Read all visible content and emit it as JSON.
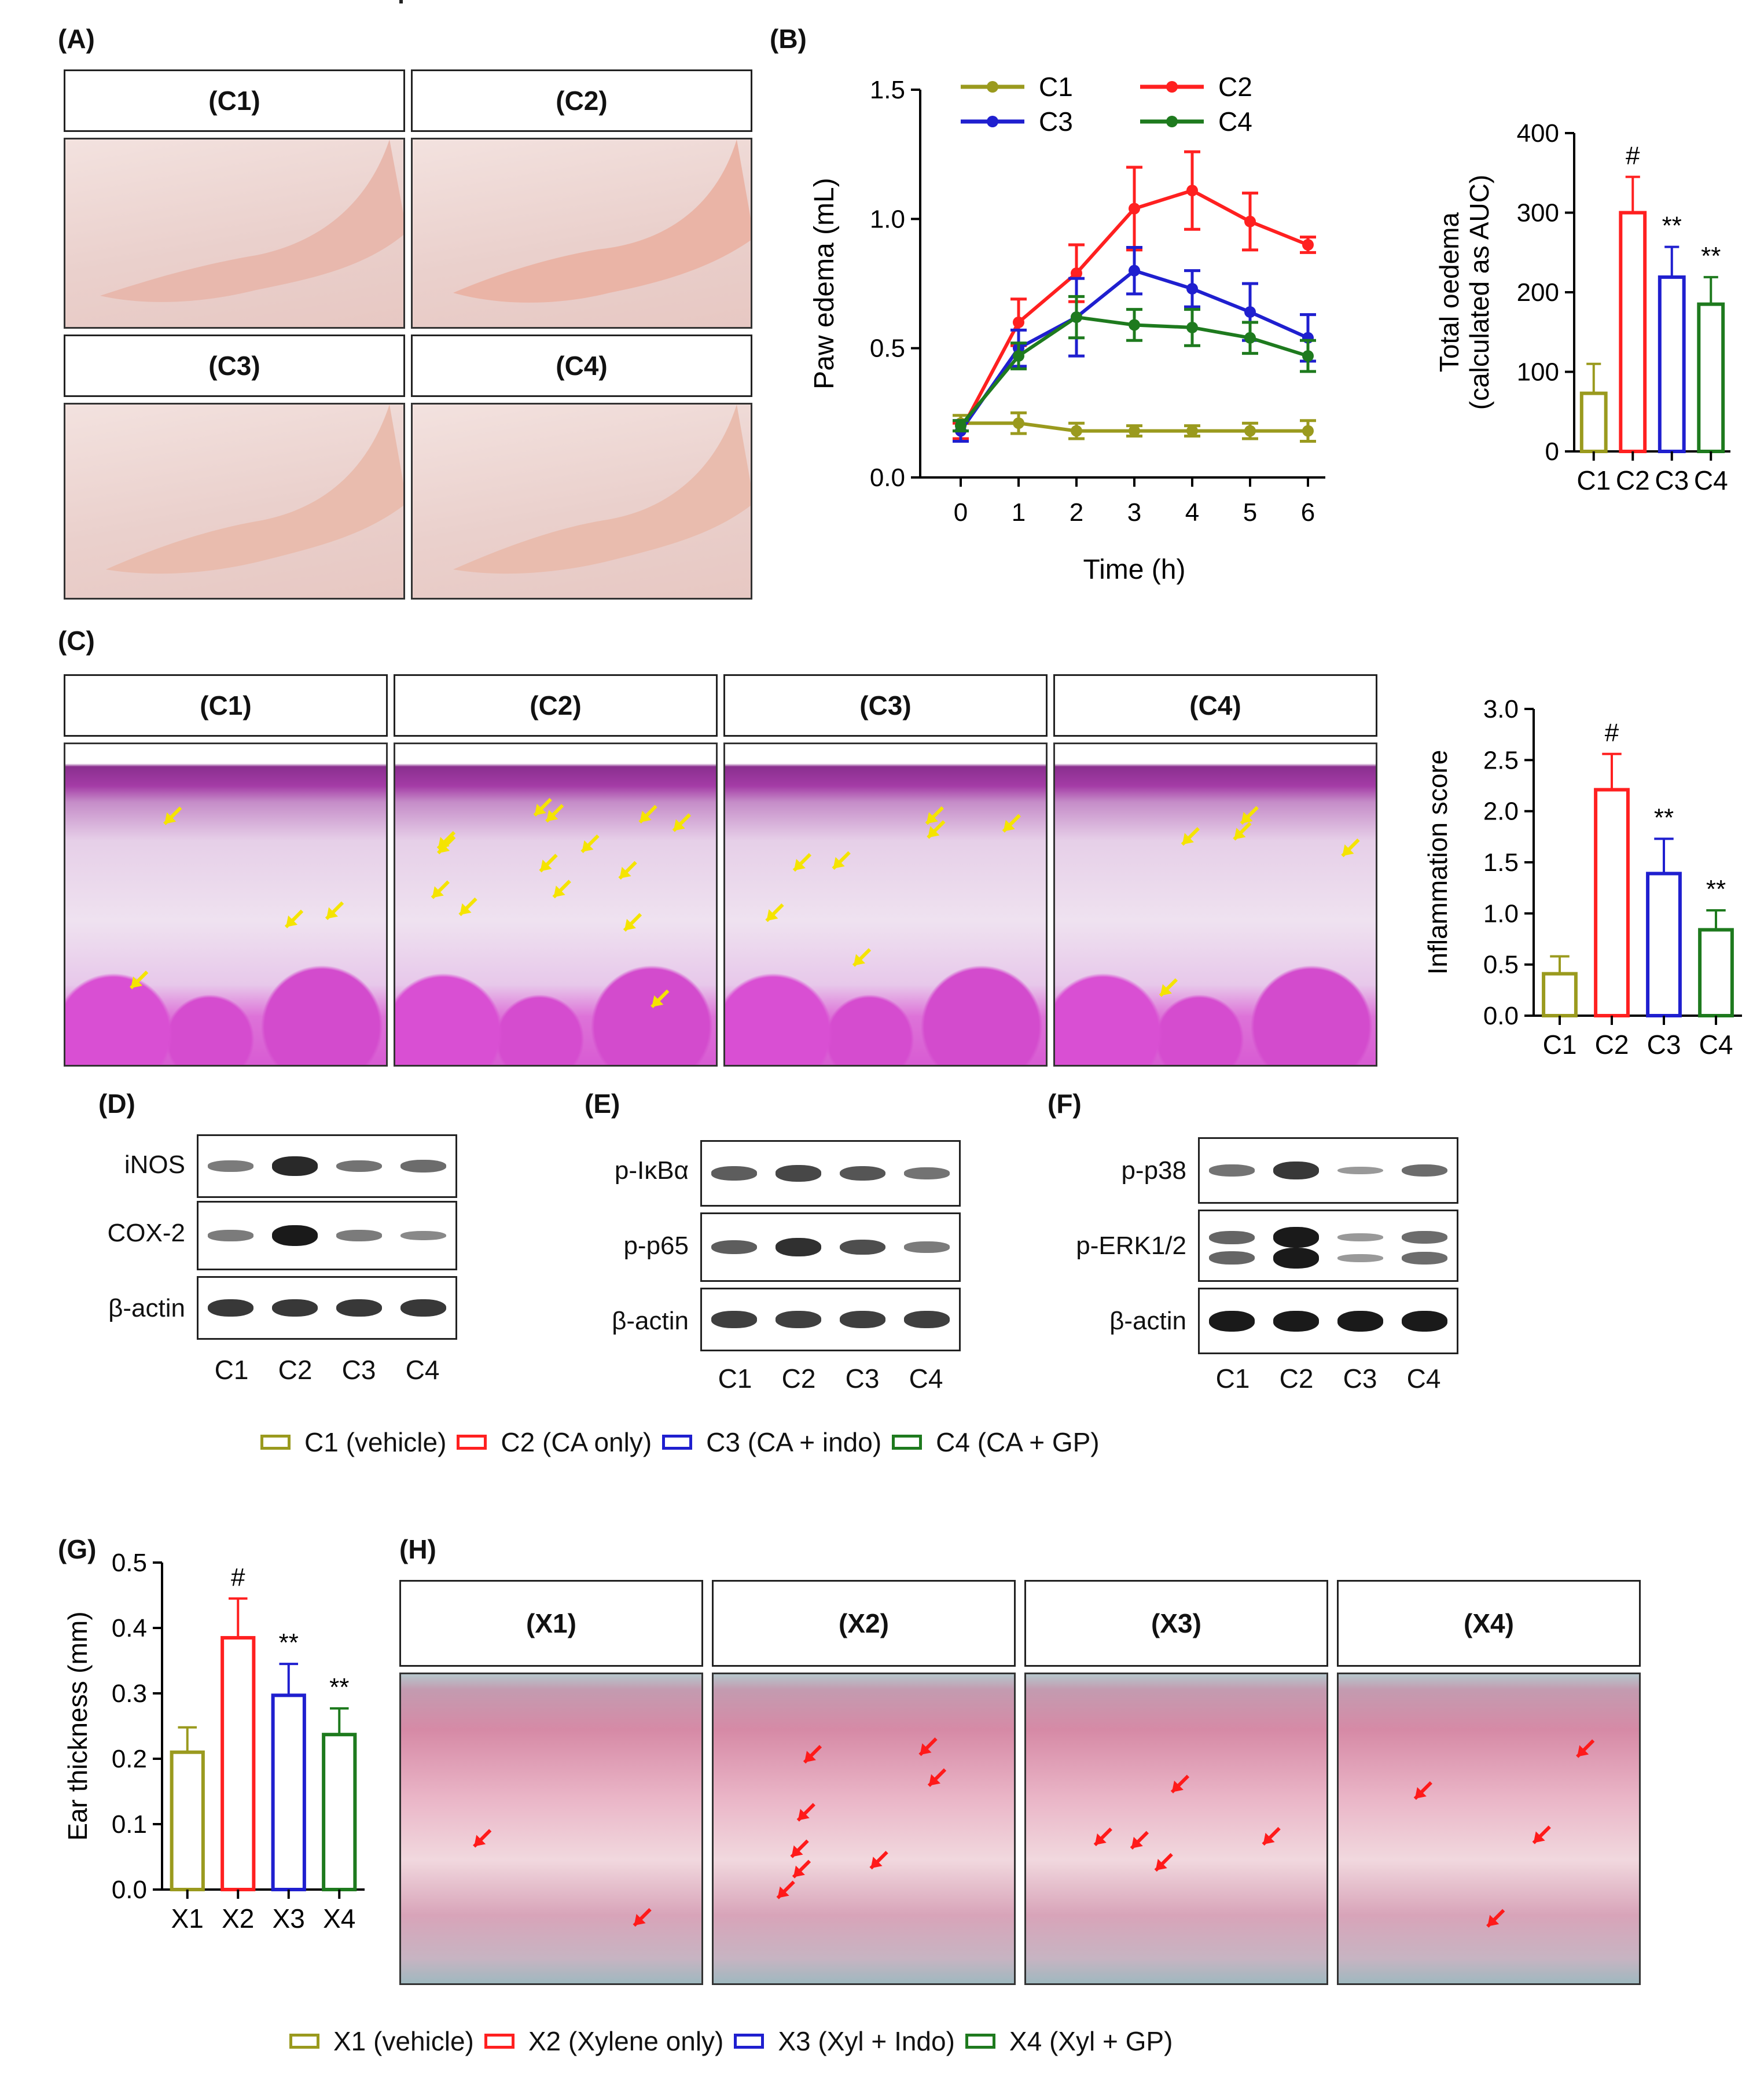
{
  "panels": {
    "A": {
      "label": "(A)",
      "conditions": [
        "(C1)",
        "(C2)",
        "(C3)",
        "(C4)"
      ]
    },
    "B": {
      "label": "(B)"
    },
    "C": {
      "label": "(C)",
      "conditions": [
        "(C1)",
        "(C2)",
        "(C3)",
        "(C4)"
      ]
    },
    "D": {
      "label": "(D)",
      "rows": [
        "iNOS",
        "COX-2",
        "β-actin"
      ],
      "lanes": [
        "C1",
        "C2",
        "C3",
        "C4"
      ]
    },
    "E": {
      "label": "(E)",
      "rows": [
        "p-IκBα",
        "p-p65",
        "β-actin"
      ],
      "lanes": [
        "C1",
        "C2",
        "C3",
        "C4"
      ]
    },
    "F": {
      "label": "(F)",
      "rows": [
        "p-p38",
        "p-ERK1/2",
        "β-actin"
      ],
      "lanes": [
        "C1",
        "C2",
        "C3",
        "C4"
      ]
    },
    "G": {
      "label": "(G)"
    },
    "H": {
      "label": "(H)",
      "conditions": [
        "(X1)",
        "(X2)",
        "(X3)",
        "(X4)"
      ]
    }
  },
  "legend_c": [
    {
      "label": "C1 (vehicle)",
      "color": "#9a9a1e"
    },
    {
      "label": "C2 (CA only)",
      "color": "#ff2020"
    },
    {
      "label": "C3 (CA + indo)",
      "color": "#1f1fcf"
    },
    {
      "label": "C4 (CA + GP)",
      "color": "#1e7a1e"
    }
  ],
  "legend_x": [
    {
      "label": "X1 (vehicle)",
      "color": "#9a9a1e"
    },
    {
      "label": "X2 (Xylene only)",
      "color": "#ff2020"
    },
    {
      "label": "X3 (Xyl + Indo)",
      "color": "#1f1fcf"
    },
    {
      "label": "X4 (Xyl + GP)",
      "color": "#1e7a1e"
    }
  ],
  "chart_data": [
    {
      "id": "paw-edema",
      "type": "line",
      "xlabel": "Time (h)",
      "ylabel": "Paw  edema (mL)",
      "x": [
        0,
        1,
        2,
        3,
        4,
        5,
        6
      ],
      "xlim": [
        0,
        6
      ],
      "ylim": [
        0,
        1.5
      ],
      "yticks": [
        "0.0",
        "0.5",
        "1.0",
        "1.5"
      ],
      "series": [
        {
          "name": "C1",
          "color": "#9a9a1e",
          "values": [
            0.21,
            0.21,
            0.18,
            0.18,
            0.18,
            0.18,
            0.18
          ],
          "errors": [
            0.03,
            0.04,
            0.03,
            0.02,
            0.02,
            0.03,
            0.04
          ]
        },
        {
          "name": "C2",
          "color": "#ff2020",
          "values": [
            0.18,
            0.6,
            0.79,
            1.04,
            1.11,
            0.99,
            0.9
          ],
          "errors": [
            0.03,
            0.09,
            0.11,
            0.16,
            0.15,
            0.11,
            0.03
          ]
        },
        {
          "name": "C3",
          "color": "#1f1fcf",
          "values": [
            0.18,
            0.5,
            0.62,
            0.8,
            0.73,
            0.64,
            0.54
          ],
          "errors": [
            0.04,
            0.07,
            0.15,
            0.09,
            0.07,
            0.11,
            0.09
          ]
        },
        {
          "name": "C4",
          "color": "#1e7a1e",
          "values": [
            0.2,
            0.47,
            0.62,
            0.59,
            0.58,
            0.54,
            0.47
          ],
          "errors": [
            0.02,
            0.05,
            0.08,
            0.06,
            0.07,
            0.06,
            0.06
          ]
        }
      ]
    },
    {
      "id": "total-oedema",
      "type": "bar",
      "ylabel": "Total oedema\n(calculated as AUC)",
      "categories": [
        "C1",
        "C2",
        "C3",
        "C4"
      ],
      "values": [
        73,
        300,
        219,
        185
      ],
      "errors": [
        37,
        45,
        38,
        34
      ],
      "annotations": [
        "",
        "#",
        "**",
        "**"
      ],
      "colors": [
        "#9a9a1e",
        "#ff2020",
        "#1f1fcf",
        "#1e7a1e"
      ],
      "ylim": [
        0,
        400
      ],
      "yticks": [
        "0",
        "100",
        "200",
        "300",
        "400"
      ]
    },
    {
      "id": "inflammation-score",
      "type": "bar",
      "ylabel": "Inflammation score",
      "categories": [
        "C1",
        "C2",
        "C3",
        "C4"
      ],
      "values": [
        0.41,
        2.21,
        1.39,
        0.84
      ],
      "errors": [
        0.17,
        0.35,
        0.34,
        0.19
      ],
      "annotations": [
        "",
        "#",
        "**",
        "**"
      ],
      "colors": [
        "#9a9a1e",
        "#ff2020",
        "#1f1fcf",
        "#1e7a1e"
      ],
      "ylim": [
        0,
        3.0
      ],
      "yticks": [
        "0.0",
        "0.5",
        "1.0",
        "1.5",
        "2.0",
        "2.5",
        "3.0"
      ]
    },
    {
      "id": "ear-thickness",
      "type": "bar",
      "ylabel": "Ear thickness (mm)",
      "categories": [
        "X1",
        "X2",
        "X3",
        "X4"
      ],
      "values": [
        0.21,
        0.385,
        0.297,
        0.237
      ],
      "errors": [
        0.038,
        0.06,
        0.048,
        0.04
      ],
      "annotations": [
        "",
        "#",
        "**",
        "**"
      ],
      "colors": [
        "#9a9a1e",
        "#ff2020",
        "#1f1fcf",
        "#1e7a1e"
      ],
      "ylim": [
        0,
        0.5
      ],
      "yticks": [
        "0.0",
        "0.1",
        "0.2",
        "0.3",
        "0.4",
        "0.5"
      ]
    }
  ]
}
